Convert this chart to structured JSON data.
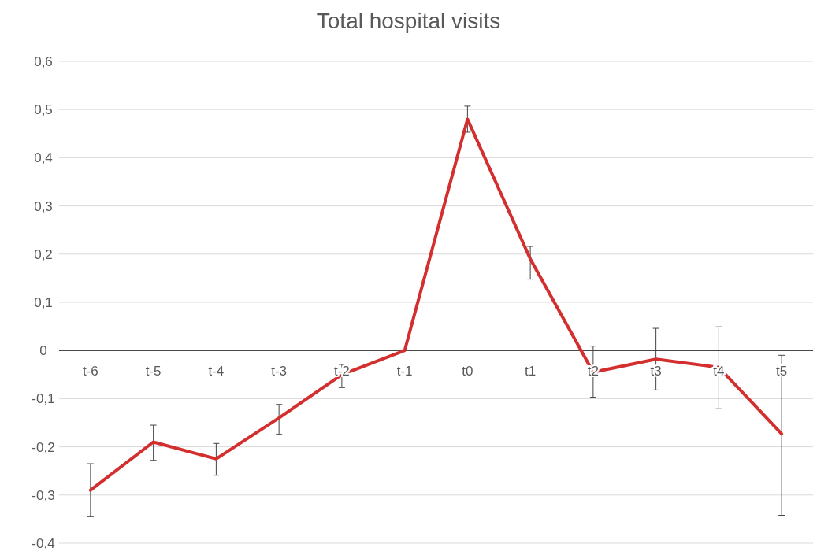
{
  "chart_data": {
    "type": "line",
    "title": "Total hospital visits",
    "categories": [
      "t-6",
      "t-5",
      "t-4",
      "t-3",
      "t-2",
      "t-1",
      "t0",
      "t1",
      "t2",
      "t3",
      "t4",
      "t5"
    ],
    "series": [
      {
        "color": "#d32f2f",
        "values": [
          -0.29,
          -0.19,
          -0.225,
          -0.14,
          -0.05,
          0,
          0.48,
          0.19,
          -0.045,
          -0.018,
          -0.035,
          -0.173
        ],
        "errors": [
          [
            -0.345,
            -0.235
          ],
          [
            -0.228,
            -0.155
          ],
          [
            -0.259,
            -0.193
          ],
          [
            -0.174,
            -0.112
          ],
          [
            -0.077,
            -0.029
          ],
          null,
          [
            0.453,
            0.507
          ],
          [
            0.148,
            0.216
          ],
          [
            -0.097,
            0.009
          ],
          [
            -0.082,
            0.046
          ],
          [
            -0.121,
            0.049
          ],
          [
            -0.342,
            -0.01
          ]
        ]
      }
    ],
    "ylim": [
      -0.4,
      0.6
    ],
    "yticks": [
      {
        "value": -0.4,
        "label": "-0,4"
      },
      {
        "value": -0.3,
        "label": "-0,3"
      },
      {
        "value": -0.2,
        "label": "-0,2"
      },
      {
        "value": -0.1,
        "label": "-0,1"
      },
      0,
      {
        "value": 0.1,
        "label": "0,1"
      },
      {
        "value": 0.2,
        "label": "0,2"
      },
      {
        "value": 0.3,
        "label": "0,3"
      },
      {
        "value": 0.4,
        "label": "0,4"
      },
      {
        "value": 0.5,
        "label": "0,5"
      },
      {
        "value": 0.6,
        "label": "0,6"
      }
    ],
    "grid": "y",
    "marker": "none",
    "line_style": "solid"
  }
}
